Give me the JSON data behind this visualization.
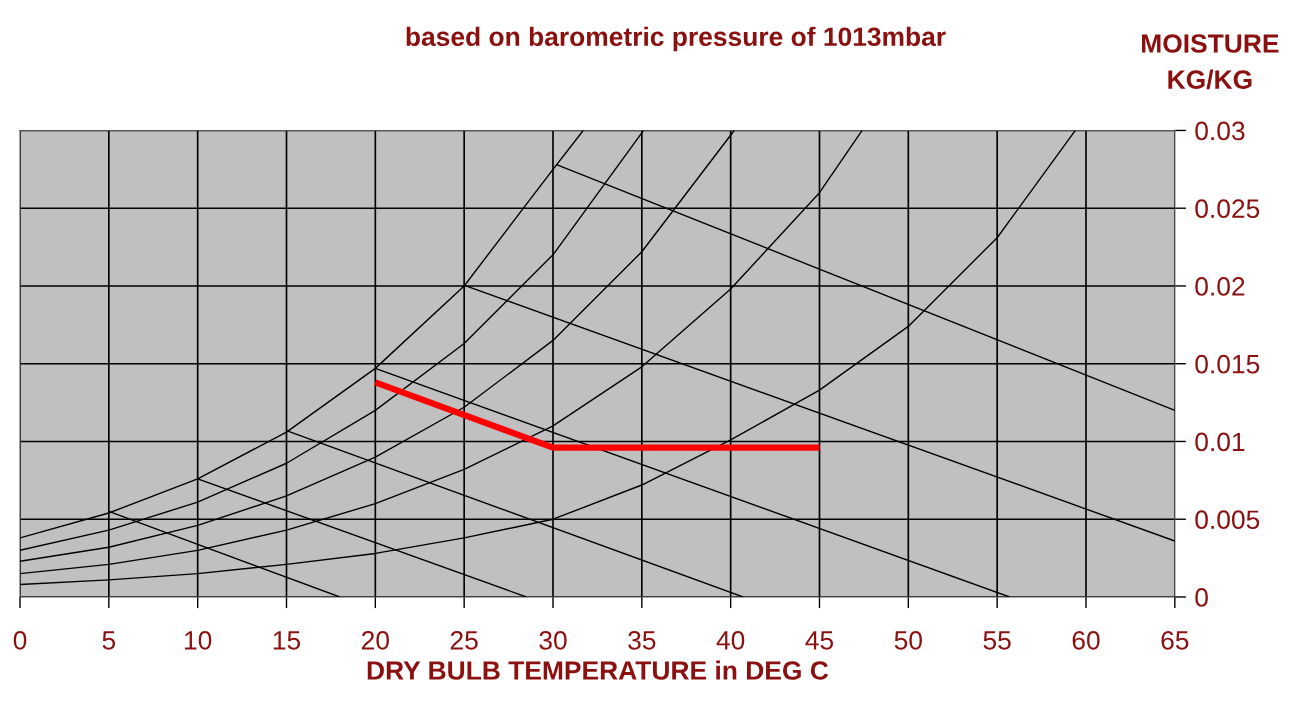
{
  "chart_data": {
    "type": "line",
    "subtitle": "based on barometric pressure of 1013mbar",
    "xlabel": "DRY BULB TEMPERATURE in DEG C",
    "ylabel": "MOISTURE\nKG/KG",
    "xlim": [
      0,
      65
    ],
    "xticks": [
      0,
      5,
      10,
      15,
      20,
      25,
      30,
      35,
      40,
      45,
      50,
      55,
      60,
      65
    ],
    "ylim": [
      0,
      0.03
    ],
    "yticks": [
      0,
      0.005,
      0.01,
      0.015,
      0.02,
      0.025,
      0.03
    ],
    "grid": true,
    "marker": "none",
    "line_style": "solid",
    "series": [
      {
        "color": "#000000",
        "x": [
          0,
          5,
          10,
          15,
          20,
          25,
          30,
          31.7
        ],
        "values": [
          0.0038,
          0.0054,
          0.0076,
          0.0106,
          0.0147,
          0.02,
          0.0275,
          0.03
        ]
      },
      {
        "color": "#000000",
        "x": [
          0,
          5,
          10,
          15,
          20,
          25,
          30,
          35.1
        ],
        "values": [
          0.003,
          0.0043,
          0.0061,
          0.0086,
          0.012,
          0.0163,
          0.022,
          0.03
        ]
      },
      {
        "color": "#000000",
        "x": [
          0,
          5,
          10,
          15,
          20,
          25,
          30,
          35,
          40.2
        ],
        "values": [
          0.0023,
          0.0032,
          0.0046,
          0.0065,
          0.009,
          0.0122,
          0.0165,
          0.0222,
          0.03
        ]
      },
      {
        "color": "#000000",
        "x": [
          0,
          5,
          10,
          15,
          20,
          25,
          30,
          35,
          40,
          45,
          47.4
        ],
        "values": [
          0.0015,
          0.0021,
          0.003,
          0.0043,
          0.006,
          0.0082,
          0.011,
          0.0148,
          0.0198,
          0.026,
          0.03
        ]
      },
      {
        "color": "#000000",
        "x": [
          0,
          5,
          10,
          15,
          20,
          25,
          30,
          35,
          40,
          45,
          50,
          55,
          59.4
        ],
        "values": [
          0.0008,
          0.0011,
          0.0015,
          0.0021,
          0.0028,
          0.0038,
          0.005,
          0.0072,
          0.0101,
          0.0133,
          0.0174,
          0.0231,
          0.03
        ]
      },
      {
        "color": "#000000",
        "x": [
          5,
          18
        ],
        "values": [
          0.0055,
          0
        ]
      },
      {
        "color": "#000000",
        "x": [
          10,
          28.5
        ],
        "values": [
          0.0076,
          0
        ]
      },
      {
        "color": "#000000",
        "x": [
          15,
          40.7
        ],
        "values": [
          0.0107,
          0
        ]
      },
      {
        "color": "#000000",
        "x": [
          20,
          55.7
        ],
        "values": [
          0.0147,
          0
        ]
      },
      {
        "color": "#000000",
        "x": [
          25.1,
          65
        ],
        "values": [
          0.02,
          0.0036
        ]
      },
      {
        "color": "#000000",
        "x": [
          30.2,
          65
        ],
        "values": [
          0.0278,
          0.012
        ]
      },
      {
        "color": "#ff0000",
        "x": [
          20,
          30,
          45
        ],
        "values": [
          0.0138,
          0.0096,
          0.0096
        ]
      }
    ]
  }
}
